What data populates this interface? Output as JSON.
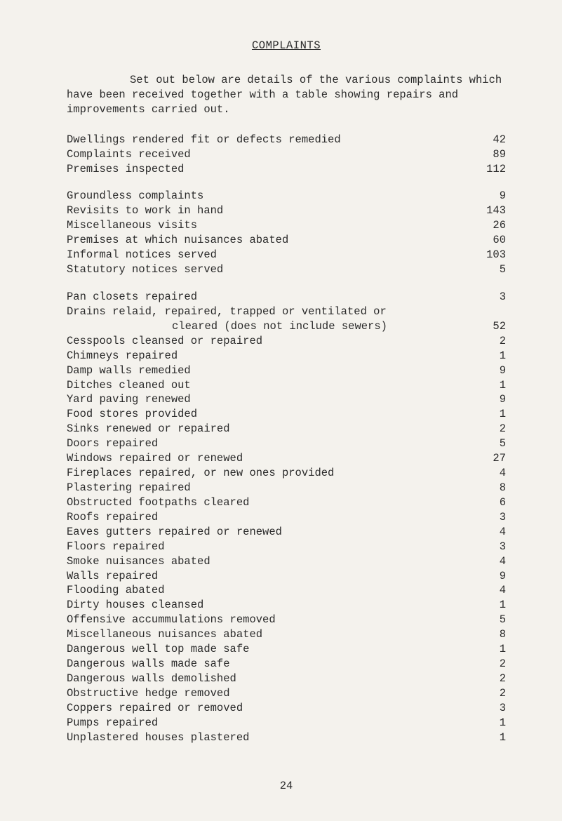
{
  "title": "COMPLAINTS",
  "intro": "Set out below are details of the various complaints which have been received together with a table showing repairs and improvements carried out.",
  "group1": [
    {
      "label": "Dwellings rendered fit or defects remedied",
      "value": "42"
    },
    {
      "label": "Complaints received",
      "value": "89"
    },
    {
      "label": "Premises inspected",
      "value": "112"
    }
  ],
  "group2": [
    {
      "label": "Groundless complaints",
      "value": "9"
    },
    {
      "label": "Revisits to work in hand",
      "value": "143"
    },
    {
      "label": "Miscellaneous visits",
      "value": "26"
    },
    {
      "label": "Premises at which nuisances abated",
      "value": "60"
    },
    {
      "label": "Informal notices served",
      "value": "103"
    },
    {
      "label": "Statutory notices served",
      "value": "5"
    }
  ],
  "g3_pan": {
    "label": "Pan closets repaired",
    "value": "3"
  },
  "g3_drains1": "Drains relaid, repaired, trapped or ventilated or",
  "g3_drains2": {
    "label": "cleared (does not include sewers)",
    "value": "52"
  },
  "group3": [
    {
      "label": "Cesspools cleansed or repaired",
      "value": "2"
    },
    {
      "label": "Chimneys repaired",
      "value": "1"
    },
    {
      "label": "Damp walls remedied",
      "value": "9"
    },
    {
      "label": "Ditches cleaned out",
      "value": "1"
    },
    {
      "label": "Yard paving renewed",
      "value": "9"
    },
    {
      "label": "Food stores provided",
      "value": "1"
    },
    {
      "label": "Sinks renewed or repaired",
      "value": "2"
    },
    {
      "label": "Doors repaired",
      "value": "5"
    },
    {
      "label": "Windows repaired or renewed",
      "value": "27"
    },
    {
      "label": "Fireplaces repaired, or new ones provided",
      "value": "4"
    },
    {
      "label": "Plastering repaired",
      "value": "8"
    },
    {
      "label": "Obstructed footpaths cleared",
      "value": "6"
    },
    {
      "label": "Roofs repaired",
      "value": "3"
    },
    {
      "label": "Eaves gutters repaired or renewed",
      "value": "4"
    },
    {
      "label": "Floors repaired",
      "value": "3"
    },
    {
      "label": "Smoke nuisances abated",
      "value": "4"
    },
    {
      "label": "Walls repaired",
      "value": "9"
    },
    {
      "label": "Flooding abated",
      "value": "4"
    },
    {
      "label": "Dirty houses cleansed",
      "value": "1"
    },
    {
      "label": "Offensive accummulations removed",
      "value": "5"
    },
    {
      "label": "Miscellaneous nuisances abated",
      "value": "8"
    },
    {
      "label": "Dangerous well top made safe",
      "value": "1"
    },
    {
      "label": "Dangerous walls made safe",
      "value": "2"
    },
    {
      "label": "Dangerous walls demolished",
      "value": "2"
    },
    {
      "label": "Obstructive hedge removed",
      "value": "2"
    },
    {
      "label": "Coppers repaired or removed",
      "value": "3"
    },
    {
      "label": "Pumps  repaired",
      "value": "1"
    },
    {
      "label": "Unplastered houses plastered",
      "value": "1"
    }
  ],
  "page_number": "24"
}
